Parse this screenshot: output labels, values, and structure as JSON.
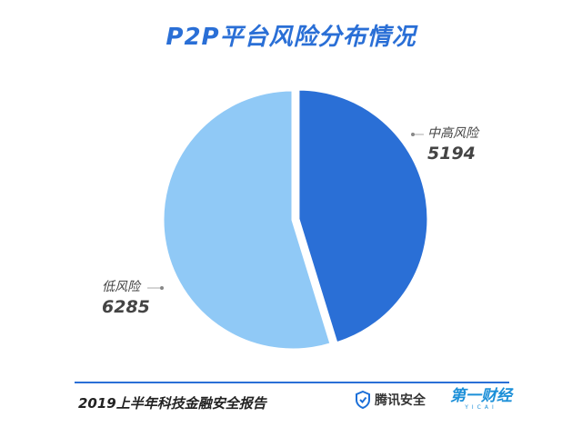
{
  "chart_data": {
    "type": "pie",
    "title": "P2P平台风险分布情况",
    "slices": [
      {
        "label": "中高风险",
        "value": 5194,
        "value_text": "5194",
        "color": "#2a6fd6"
      },
      {
        "label": "低风险",
        "value": 6285,
        "value_text": "6285",
        "color": "#90c9f6"
      }
    ]
  },
  "footer": {
    "source": "2019上半年科技金融安全报告",
    "brand_tencent": "腾讯安全",
    "brand_yicai": "第一财经",
    "brand_yicai_sub": "YICAI"
  }
}
